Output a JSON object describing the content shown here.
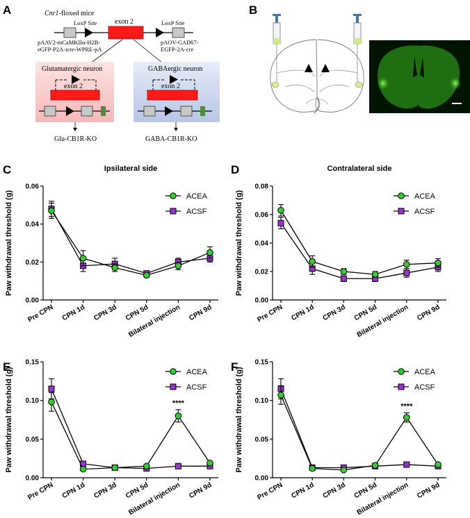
{
  "colors": {
    "acea": "#33cc33",
    "acsf": "#9933cc",
    "exon": "#ff1a1a",
    "gray_box": "#c8c8c8",
    "green_box": "#4c8c3c",
    "fluor_bg": "#001a00",
    "fluor": "#2f8f1c"
  },
  "panel_a": {
    "letter": "A",
    "title_italic": "Cnr1",
    "title_rest": "-floxed mice",
    "loxp_left": "LoxP Site",
    "loxp_right": "LoxP Site",
    "exon": "exon 2",
    "vector_left_1": "pAAV2-mCaMKIIα-H2B-",
    "vector_left_2": "eGFP-P2A-icre-WPRE-pA",
    "vector_right_1": "pAOV-GAD67-",
    "vector_right_2": "EGFP-2A-cre",
    "glu_neuron": "Glutamatergic neuron",
    "gaba_neuron": "GABAergic neuron",
    "exon_inner_left": "exon 2",
    "exon_inner_right": "exon 2",
    "glu_ko": "Glu-CB1R-KO",
    "gaba_ko": "GABA-CB1R-KO"
  },
  "panel_b": {
    "letter": "B"
  },
  "chart_data": [
    {
      "letter": "C",
      "type": "line",
      "title": "Ipsilateral side",
      "ylabel": "Paw withdrawal threshold (g)",
      "categories": [
        "Pre CPN",
        "CPN 1d",
        "CPN 3d",
        "CPN 5d",
        "Bilateral injection",
        "CPN 9d"
      ],
      "ylim": [
        0,
        0.06
      ],
      "yticks": [
        "0.00",
        "0.02",
        "0.04",
        "0.06"
      ],
      "legend": "top-right",
      "series": [
        {
          "name": "ACEA",
          "values": [
            0.047,
            0.022,
            0.017,
            0.013,
            0.018,
            0.025
          ],
          "err": [
            0.004,
            0.004,
            0.002,
            0.001,
            0.002,
            0.003
          ]
        },
        {
          "name": "ACSF",
          "values": [
            0.048,
            0.018,
            0.019,
            0.014,
            0.02,
            0.022
          ],
          "err": [
            0.004,
            0.003,
            0.003,
            0.001,
            0.002,
            0.002
          ]
        }
      ],
      "annotations": []
    },
    {
      "letter": "D",
      "type": "line",
      "title": "Contralateral side",
      "ylabel": "Paw withdrawal threshold (g)",
      "categories": [
        "Pre CPN",
        "CPN 1d",
        "CPN 3d",
        "CPN 5d",
        "Bilateral injection",
        "CPN 9d"
      ],
      "ylim": [
        0,
        0.08
      ],
      "yticks": [
        "0.00",
        "0.02",
        "0.04",
        "0.06",
        "0.08"
      ],
      "legend": "top-right",
      "series": [
        {
          "name": "ACEA",
          "values": [
            0.063,
            0.027,
            0.02,
            0.018,
            0.025,
            0.026
          ],
          "err": [
            0.004,
            0.004,
            0.002,
            0.002,
            0.003,
            0.003
          ]
        },
        {
          "name": "ACSF",
          "values": [
            0.054,
            0.022,
            0.015,
            0.015,
            0.019,
            0.023
          ],
          "err": [
            0.004,
            0.004,
            0.002,
            0.002,
            0.003,
            0.003
          ]
        }
      ],
      "annotations": []
    },
    {
      "letter": "E",
      "type": "line",
      "title": "",
      "ylabel": "Paw withdrawal threshold (g)",
      "categories": [
        "Pre CPN",
        "CPN 1d",
        "CPN 3d",
        "CPN 5d",
        "Bilateral injection",
        "CPN 9d"
      ],
      "ylim": [
        0,
        0.15
      ],
      "yticks": [
        "0.00",
        "0.05",
        "0.10",
        "0.15"
      ],
      "legend": "top-right",
      "series": [
        {
          "name": "ACEA",
          "values": [
            0.098,
            0.011,
            0.013,
            0.015,
            0.08,
            0.019
          ],
          "err": [
            0.012,
            0.001,
            0.001,
            0.001,
            0.008,
            0.001
          ]
        },
        {
          "name": "ACSF",
          "values": [
            0.115,
            0.018,
            0.013,
            0.012,
            0.015,
            0.015
          ],
          "err": [
            0.013,
            0.002,
            0.001,
            0.001,
            0.001,
            0.001
          ]
        }
      ],
      "annotations": [
        {
          "text": "****",
          "category_index": 4
        }
      ]
    },
    {
      "letter": "F",
      "type": "line",
      "title": "",
      "ylabel": "Paw withdrawal threshold (g)",
      "categories": [
        "Pre CPN",
        "CPN 1d",
        "CPN 3d",
        "CPN 5d",
        "Bilateral injection",
        "CPN 9d"
      ],
      "ylim": [
        0,
        0.15
      ],
      "yticks": [
        "0.00",
        "0.05",
        "0.10",
        "0.15"
      ],
      "legend": "top-right",
      "series": [
        {
          "name": "ACEA",
          "values": [
            0.107,
            0.012,
            0.01,
            0.016,
            0.078,
            0.017
          ],
          "err": [
            0.012,
            0.001,
            0.001,
            0.001,
            0.006,
            0.001
          ]
        },
        {
          "name": "ACSF",
          "values": [
            0.115,
            0.013,
            0.013,
            0.015,
            0.017,
            0.015
          ],
          "err": [
            0.013,
            0.001,
            0.001,
            0.001,
            0.001,
            0.001
          ]
        }
      ],
      "annotations": [
        {
          "text": "****",
          "category_index": 4
        }
      ]
    }
  ]
}
